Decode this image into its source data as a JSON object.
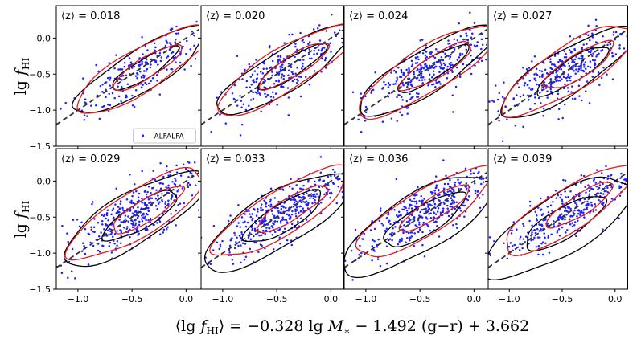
{
  "chart_data": {
    "type": "scatter",
    "layout": {
      "rows": 2,
      "cols": 4
    },
    "xlabel": "⟨lg f_HI⟩ = −0.328 lg M* − 1.492 (g−r) + 3.662",
    "ylabel": "lg f_HI",
    "ylabel_parts": {
      "lg": "lg ",
      "f": "f",
      "sub": "HI"
    },
    "xlabel_parts": [
      "⟨lg ",
      "f",
      "HI",
      "⟩ = −0.328 lg ",
      "M",
      "∗",
      " − 1.492 (g−r) + 3.662"
    ],
    "xlim": [
      -1.2,
      0.12
    ],
    "ylim": [
      -1.5,
      0.45
    ],
    "xticks": [
      -1.0,
      -0.5,
      0.0
    ],
    "xtick_labels": [
      "−1.0",
      "−0.5",
      "0.0"
    ],
    "yticks": [
      -1.5,
      -1.0,
      -0.5,
      0.0
    ],
    "ytick_labels": [
      "−1.5",
      "−1.0",
      "−0.5",
      "0.0"
    ],
    "reference_line": {
      "style": "dashed",
      "slope": 1,
      "intercept": 0,
      "color": "#333333"
    },
    "legend": {
      "label": "ALFALFA",
      "marker_color": "#1f1fff",
      "location": "lower-right",
      "panel": 0
    },
    "colors": {
      "points": "#1f1fff",
      "contour_red": "#e31a1c",
      "contour_black": "#000000"
    },
    "panels": [
      {
        "z_label": "⟨z⟩ = 0.018",
        "n_points": 220,
        "black_outer": {
          "cx": -0.42,
          "cy": -0.45,
          "a": 0.82,
          "b": 0.24
        },
        "black_inner": {
          "cx": -0.38,
          "cy": -0.42,
          "a": 0.42,
          "b": 0.11
        },
        "red_outer": {
          "cx": -0.41,
          "cy": -0.44,
          "a": 0.83,
          "b": 0.25
        },
        "red_inner": {
          "cx": -0.36,
          "cy": -0.41,
          "a": 0.43,
          "b": 0.12
        }
      },
      {
        "z_label": "⟨z⟩ = 0.020",
        "n_points": 260,
        "black_outer": {
          "cx": -0.43,
          "cy": -0.45,
          "a": 0.85,
          "b": 0.24
        },
        "black_inner": {
          "cx": -0.36,
          "cy": -0.4,
          "a": 0.44,
          "b": 0.11
        },
        "red_outer": {
          "cx": -0.42,
          "cy": -0.44,
          "a": 0.86,
          "b": 0.25
        },
        "red_inner": {
          "cx": -0.34,
          "cy": -0.38,
          "a": 0.44,
          "b": 0.12
        }
      },
      {
        "z_label": "⟨z⟩ = 0.024",
        "n_points": 330,
        "black_outer": {
          "cx": -0.44,
          "cy": -0.46,
          "a": 0.86,
          "b": 0.25
        },
        "black_inner": {
          "cx": -0.38,
          "cy": -0.42,
          "a": 0.45,
          "b": 0.12
        },
        "red_outer": {
          "cx": -0.43,
          "cy": -0.45,
          "a": 0.87,
          "b": 0.26
        },
        "red_inner": {
          "cx": -0.35,
          "cy": -0.39,
          "a": 0.45,
          "b": 0.13
        }
      },
      {
        "z_label": "⟨z⟩ = 0.027",
        "n_points": 340,
        "black_outer": {
          "cx": -0.46,
          "cy": -0.48,
          "a": 0.86,
          "b": 0.26
        },
        "black_inner": {
          "cx": -0.4,
          "cy": -0.45,
          "a": 0.46,
          "b": 0.13
        },
        "red_outer": {
          "cx": -0.44,
          "cy": -0.44,
          "a": 0.84,
          "b": 0.27
        },
        "red_inner": {
          "cx": -0.34,
          "cy": -0.38,
          "a": 0.44,
          "b": 0.14
        }
      },
      {
        "z_label": "⟨z⟩ = 0.029",
        "n_points": 380,
        "black_outer": {
          "cx": -0.48,
          "cy": -0.52,
          "a": 0.88,
          "b": 0.3
        },
        "black_inner": {
          "cx": -0.42,
          "cy": -0.48,
          "a": 0.46,
          "b": 0.15
        },
        "red_outer": {
          "cx": -0.46,
          "cy": -0.46,
          "a": 0.84,
          "b": 0.27
        },
        "red_inner": {
          "cx": -0.36,
          "cy": -0.4,
          "a": 0.44,
          "b": 0.13
        }
      },
      {
        "z_label": "⟨z⟩ = 0.033",
        "n_points": 400,
        "black_outer": {
          "cx": -0.5,
          "cy": -0.56,
          "a": 0.9,
          "b": 0.32
        },
        "black_inner": {
          "cx": -0.44,
          "cy": -0.5,
          "a": 0.48,
          "b": 0.16
        },
        "red_outer": {
          "cx": -0.46,
          "cy": -0.44,
          "a": 0.84,
          "b": 0.26
        },
        "red_inner": {
          "cx": -0.36,
          "cy": -0.38,
          "a": 0.44,
          "b": 0.13
        }
      },
      {
        "z_label": "⟨z⟩ = 0.036",
        "n_points": 390,
        "black_outer": {
          "cx": -0.52,
          "cy": -0.6,
          "a": 0.92,
          "b": 0.34
        },
        "black_inner": {
          "cx": -0.46,
          "cy": -0.54,
          "a": 0.5,
          "b": 0.17
        },
        "red_outer": {
          "cx": -0.46,
          "cy": -0.44,
          "a": 0.84,
          "b": 0.26
        },
        "red_inner": {
          "cx": -0.36,
          "cy": -0.37,
          "a": 0.44,
          "b": 0.12
        }
      },
      {
        "z_label": "⟨z⟩ = 0.039",
        "n_points": 330,
        "black_outer": {
          "cx": -0.54,
          "cy": -0.64,
          "a": 0.92,
          "b": 0.35
        },
        "black_inner": {
          "cx": -0.48,
          "cy": -0.58,
          "a": 0.5,
          "b": 0.18
        },
        "red_outer": {
          "cx": -0.44,
          "cy": -0.4,
          "a": 0.84,
          "b": 0.25
        },
        "red_inner": {
          "cx": -0.33,
          "cy": -0.33,
          "a": 0.43,
          "b": 0.12
        }
      }
    ]
  }
}
